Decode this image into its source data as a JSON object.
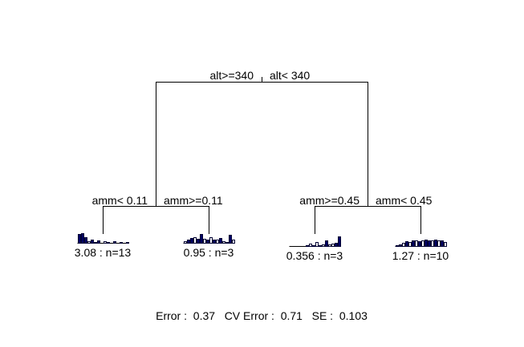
{
  "root": {
    "split_left": "alt>=340",
    "split_right": "alt< 340"
  },
  "left_node": {
    "split_left": "amm< 0.11",
    "split_right": "amm>=0.11"
  },
  "right_node": {
    "split_left": "amm>=0.45",
    "split_right": "amm< 0.45"
  },
  "leaves": [
    {
      "label": "3.08 : n=13",
      "bars": [
        0.9,
        1.0,
        0.6,
        0.15,
        0.3,
        0.1,
        0.25,
        0,
        0.15,
        0.1,
        0,
        0.15,
        0,
        0.05,
        0,
        0.05
      ],
      "filled": [
        true,
        true,
        true,
        false,
        true,
        false,
        true,
        false,
        false,
        true,
        false,
        true,
        false,
        false,
        false,
        false
      ]
    },
    {
      "label": "0.95 : n=3",
      "bars": [
        0.2,
        0.3,
        0.5,
        0.6,
        0.4,
        0.9,
        0.4,
        0.3,
        0.6,
        0.3,
        0.3,
        0.5,
        0.2,
        0.1,
        0.85,
        0.3
      ],
      "filled": [
        false,
        true,
        true,
        false,
        true,
        true,
        false,
        true,
        false,
        true,
        false,
        true,
        false,
        false,
        true,
        false
      ]
    },
    {
      "label": "0.356 : n=3",
      "bars": [
        0,
        0,
        0,
        0,
        0,
        0.1,
        0.25,
        0.1,
        0.45,
        0.1,
        0.15,
        0.6,
        0.15,
        0.25,
        0.3,
        1.0
      ],
      "filled": [
        false,
        false,
        false,
        false,
        false,
        false,
        false,
        false,
        false,
        false,
        false,
        true,
        false,
        false,
        true,
        true
      ]
    },
    {
      "label": "1.27 : n=10",
      "bars": [
        0.1,
        0.2,
        0.3,
        0.5,
        0.45,
        0.55,
        0.6,
        0.5,
        0.6,
        0.65,
        0.55,
        0.6,
        0.65,
        0.55,
        0.6,
        0.45
      ],
      "filled": [
        false,
        true,
        false,
        true,
        false,
        true,
        false,
        true,
        false,
        true,
        true,
        false,
        true,
        false,
        true,
        false
      ]
    }
  ],
  "footer": {
    "text": "Error :  0.37   CV Error :  0.71   SE :  0.103"
  },
  "colors": {
    "bar_fill": "#000066",
    "line": "#000000"
  }
}
